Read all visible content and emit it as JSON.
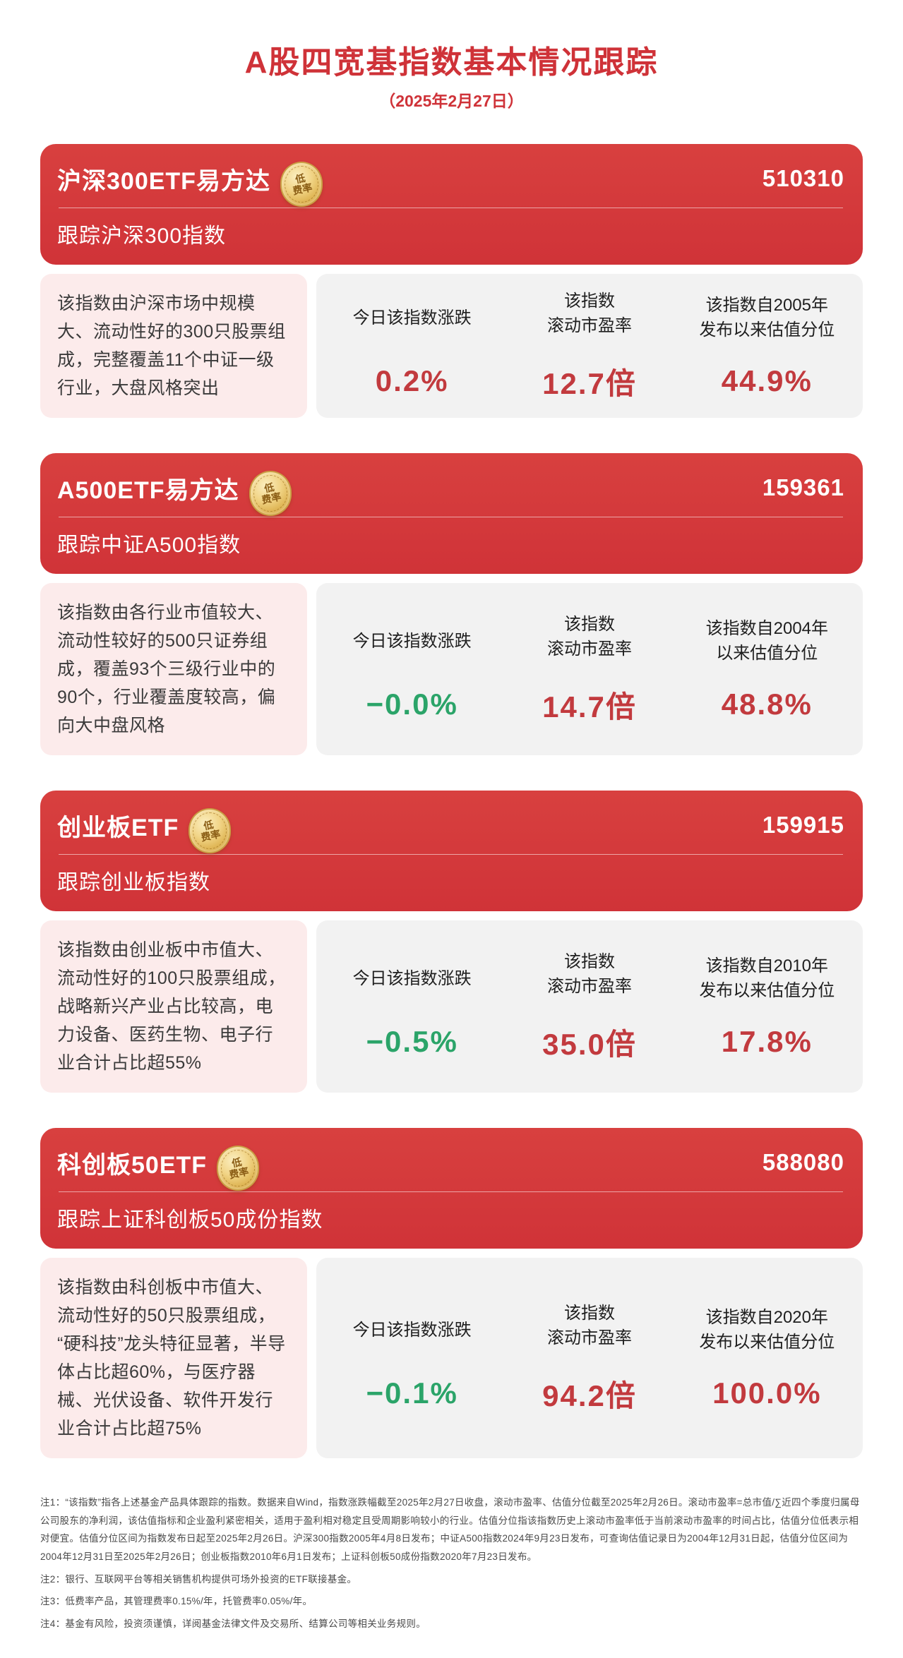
{
  "page": {
    "title": "A股四宽基指数基本情况跟踪",
    "date": "（2025年2月27日）"
  },
  "badge": {
    "line1": "低",
    "line2": "费率"
  },
  "colors": {
    "header_red": "#d5383d",
    "value_red": "#c23a3e",
    "value_green": "#2ba469",
    "desc_pink": "#fcebeb",
    "stats_gray": "#f2f2f2",
    "badge_gold": "#e9c15c"
  },
  "cards": [
    {
      "name": "沪深300ETF易方达",
      "code": "510310",
      "tracking": "跟踪沪深300指数",
      "description": "该指数由沪深市场中规模大、流动性好的300只股票组成，完整覆盖11个中证一级行业，大盘风格突出",
      "stats": [
        {
          "label": "今日该指数涨跌",
          "value": "0.2%",
          "color": "#c23a3e"
        },
        {
          "label": "该指数\n滚动市盈率",
          "value": "12.7倍",
          "color": "#c23a3e"
        },
        {
          "label": "该指数自2005年\n发布以来估值分位",
          "value": "44.9%",
          "color": "#c23a3e"
        }
      ]
    },
    {
      "name": "A500ETF易方达",
      "code": "159361",
      "tracking": "跟踪中证A500指数",
      "description": "该指数由各行业市值较大、流动性较好的500只证券组成，覆盖93个三级行业中的90个，行业覆盖度较高，偏向大中盘风格",
      "stats": [
        {
          "label": "今日该指数涨跌",
          "value": "−0.0%",
          "color": "#2ba469"
        },
        {
          "label": "该指数\n滚动市盈率",
          "value": "14.7倍",
          "color": "#c23a3e"
        },
        {
          "label": "该指数自2004年\n以来估值分位",
          "value": "48.8%",
          "color": "#c23a3e"
        }
      ]
    },
    {
      "name": "创业板ETF",
      "code": "159915",
      "tracking": "跟踪创业板指数",
      "description": "该指数由创业板中市值大、流动性好的100只股票组成，战略新兴产业占比较高，电力设备、医药生物、电子行业合计占比超55%",
      "stats": [
        {
          "label": "今日该指数涨跌",
          "value": "−0.5%",
          "color": "#2ba469"
        },
        {
          "label": "该指数\n滚动市盈率",
          "value": "35.0倍",
          "color": "#c23a3e"
        },
        {
          "label": "该指数自2010年\n发布以来估值分位",
          "value": "17.8%",
          "color": "#c23a3e"
        }
      ]
    },
    {
      "name": "科创板50ETF",
      "code": "588080",
      "tracking": "跟踪上证科创板50成份指数",
      "description": "该指数由科创板中市值大、流动性好的50只股票组成，“硬科技”龙头特征显著，半导体占比超60%，与医疗器械、光伏设备、软件开发行业合计占比超75%",
      "stats": [
        {
          "label": "今日该指数涨跌",
          "value": "−0.1%",
          "color": "#2ba469"
        },
        {
          "label": "该指数\n滚动市盈率",
          "value": "94.2倍",
          "color": "#c23a3e"
        },
        {
          "label": "该指数自2020年\n发布以来估值分位",
          "value": "100.0%",
          "color": "#c23a3e"
        }
      ]
    }
  ],
  "notes": [
    "注1：“该指数”指各上述基金产品具体跟踪的指数。数据来自Wind，指数涨跌幅截至2025年2月27日收盘，滚动市盈率、估值分位截至2025年2月26日。滚动市盈率=总市值/∑近四个季度归属母公司股东的净利润，该估值指标和企业盈利紧密相关，适用于盈利相对稳定且受周期影响较小的行业。估值分位指该指数历史上滚动市盈率低于当前滚动市盈率的时间占比，估值分位低表示相对便宜。估值分位区间为指数发布日起至2025年2月26日。沪深300指数2005年4月8日发布；中证A500指数2024年9月23日发布，可查询估值记录日为2004年12月31日起，估值分位区间为2004年12月31日至2025年2月26日；创业板指数2010年6月1日发布；上证科创板50成份指数2020年7月23日发布。",
    "注2：银行、互联网平台等相关销售机构提供可场外投资的ETF联接基金。",
    "注3：低费率产品，其管理费率0.15%/年，托管费率0.05%/年。",
    "注4：基金有风险，投资须谨慎，详阅基金法律文件及交易所、结算公司等相关业务规则。"
  ]
}
